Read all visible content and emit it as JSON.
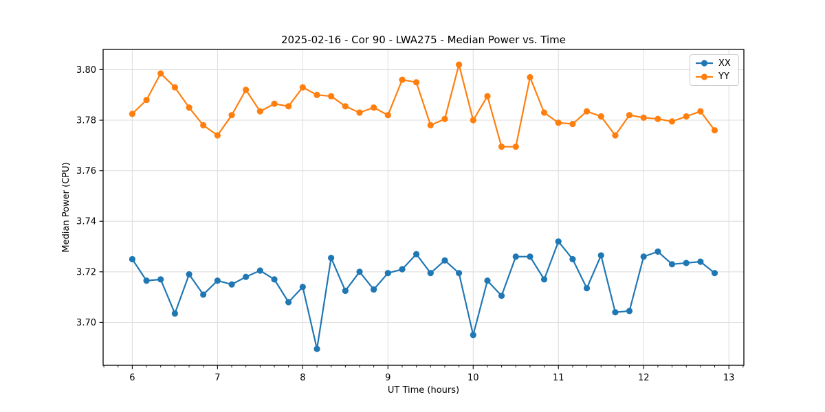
{
  "chart_data": {
    "type": "line",
    "title": "2025-02-16 - Cor 90 - LWA275 - Median Power vs. Time",
    "xlabel": "UT Time (hours)",
    "ylabel": "Median Power (CPU)",
    "xlim": [
      5.658,
      13.176
    ],
    "ylim": [
      3.683,
      3.808
    ],
    "xticks": [
      6,
      7,
      8,
      9,
      10,
      11,
      12,
      13
    ],
    "yticks": [
      3.7,
      3.72,
      3.74,
      3.76,
      3.78,
      3.8
    ],
    "x_minor_interval": 0.16667,
    "grid": true,
    "legend_position": "upper right",
    "grid_color": "#dcdcdc",
    "x": [
      6.0,
      6.167,
      6.333,
      6.5,
      6.667,
      6.833,
      7.0,
      7.167,
      7.333,
      7.5,
      7.667,
      7.833,
      8.0,
      8.167,
      8.333,
      8.5,
      8.667,
      8.833,
      9.0,
      9.167,
      9.333,
      9.5,
      9.667,
      9.833,
      10.0,
      10.167,
      10.333,
      10.5,
      10.667,
      10.833,
      11.0,
      11.167,
      11.333,
      11.5,
      11.667,
      11.833,
      12.0,
      12.167,
      12.333,
      12.5,
      12.667,
      12.833
    ],
    "series": [
      {
        "name": "XX",
        "color": "#1f77b4",
        "values": [
          3.725,
          3.7165,
          3.717,
          3.7035,
          3.719,
          3.711,
          3.7165,
          3.715,
          3.718,
          3.7205,
          3.717,
          3.708,
          3.714,
          3.6895,
          3.7255,
          3.7125,
          3.72,
          3.713,
          3.7195,
          3.721,
          3.727,
          3.7195,
          3.7245,
          3.7195,
          3.695,
          3.7165,
          3.7105,
          3.726,
          3.726,
          3.717,
          3.732,
          3.725,
          3.7135,
          3.7265,
          3.704,
          3.7045,
          3.726,
          3.728,
          3.723,
          3.7235,
          3.724,
          3.7195
        ]
      },
      {
        "name": "YY",
        "color": "#ff7f0e",
        "values": [
          3.7825,
          3.788,
          3.7985,
          3.793,
          3.785,
          3.778,
          3.774,
          3.782,
          3.792,
          3.7835,
          3.7865,
          3.7855,
          3.793,
          3.79,
          3.7895,
          3.7855,
          3.783,
          3.785,
          3.782,
          3.796,
          3.795,
          3.778,
          3.7805,
          3.802,
          3.78,
          3.7895,
          3.7695,
          3.7695,
          3.797,
          3.783,
          3.779,
          3.7785,
          3.7835,
          3.7815,
          3.774,
          3.782,
          3.781,
          3.7805,
          3.7795,
          3.7815,
          3.7835,
          3.776
        ]
      }
    ]
  }
}
